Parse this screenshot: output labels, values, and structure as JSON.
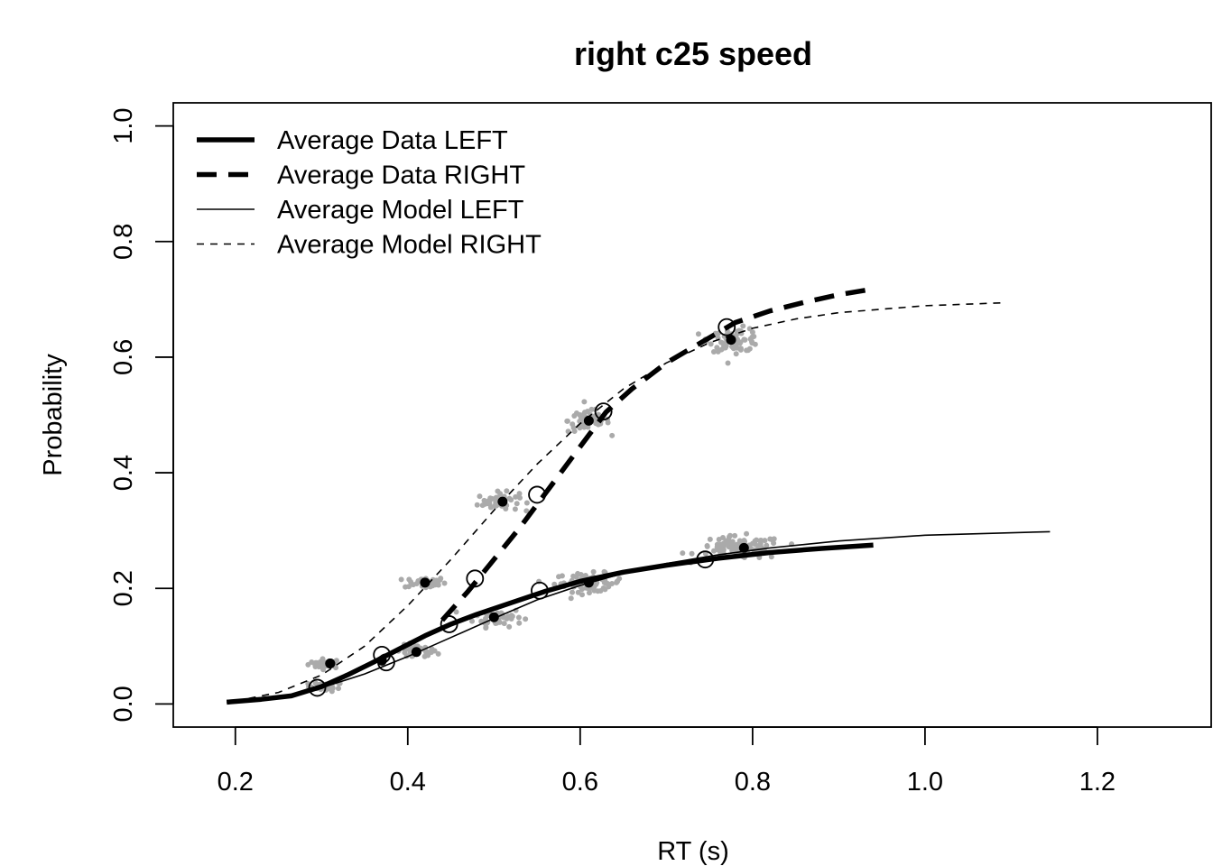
{
  "chart_data": {
    "type": "line",
    "title": "right c25 speed",
    "xlabel": "RT (s)",
    "ylabel": "Probability",
    "xlim": [
      0.128,
      1.332
    ],
    "ylim": [
      -0.04,
      1.04
    ],
    "xticks": [
      "0.2",
      "0.4",
      "0.6",
      "0.8",
      "1.0",
      "1.2"
    ],
    "xtick_values": [
      0.2,
      0.4,
      0.6,
      0.8,
      1.0,
      1.2
    ],
    "yticks": [
      "0.0",
      "0.2",
      "0.4",
      "0.6",
      "0.8",
      "1.0"
    ],
    "ytick_values": [
      0.0,
      0.2,
      0.4,
      0.6,
      0.8,
      1.0
    ],
    "grid": false,
    "legend_position": "top-left",
    "legend": [
      {
        "label": "Average Data LEFT",
        "style": "solid-thick"
      },
      {
        "label": "Average Data RIGHT",
        "style": "dashed-thick"
      },
      {
        "label": "Average Model LEFT",
        "style": "solid-thin"
      },
      {
        "label": "Average Model RIGHT",
        "style": "dashed-thin"
      }
    ],
    "series": [
      {
        "name": "Average Data LEFT",
        "style": "solid-thick",
        "x": [
          0.19,
          0.23,
          0.265,
          0.3,
          0.33,
          0.36,
          0.39,
          0.42,
          0.45,
          0.48,
          0.52,
          0.56,
          0.6,
          0.65,
          0.7,
          0.76,
          0.82,
          0.88,
          0.94
        ],
        "y": [
          0.003,
          0.008,
          0.014,
          0.03,
          0.05,
          0.072,
          0.095,
          0.118,
          0.138,
          0.155,
          0.175,
          0.195,
          0.212,
          0.228,
          0.24,
          0.252,
          0.262,
          0.269,
          0.275
        ]
      },
      {
        "name": "Average Data RIGHT",
        "style": "dashed-thick",
        "x": [
          0.44,
          0.47,
          0.5,
          0.53,
          0.56,
          0.6,
          0.63,
          0.66,
          0.7,
          0.74,
          0.78,
          0.82,
          0.86,
          0.9,
          0.94
        ],
        "y": [
          0.145,
          0.195,
          0.25,
          0.305,
          0.365,
          0.445,
          0.505,
          0.545,
          0.59,
          0.625,
          0.66,
          0.68,
          0.695,
          0.708,
          0.718
        ]
      },
      {
        "name": "Average Model LEFT",
        "style": "solid-thin",
        "x": [
          0.19,
          0.25,
          0.3,
          0.35,
          0.4,
          0.45,
          0.5,
          0.55,
          0.6,
          0.65,
          0.7,
          0.76,
          0.82,
          0.9,
          1.0,
          1.145
        ],
        "y": [
          0.003,
          0.012,
          0.028,
          0.052,
          0.082,
          0.115,
          0.148,
          0.18,
          0.205,
          0.226,
          0.243,
          0.258,
          0.27,
          0.282,
          0.292,
          0.298
        ]
      },
      {
        "name": "Average Model RIGHT",
        "style": "dashed-thin",
        "x": [
          0.2,
          0.25,
          0.3,
          0.35,
          0.4,
          0.45,
          0.5,
          0.55,
          0.6,
          0.65,
          0.7,
          0.75,
          0.8,
          0.85,
          0.9,
          1.0,
          1.09
        ],
        "y": [
          0.005,
          0.02,
          0.05,
          0.1,
          0.17,
          0.25,
          0.335,
          0.415,
          0.485,
          0.545,
          0.59,
          0.625,
          0.65,
          0.666,
          0.677,
          0.689,
          0.694
        ]
      }
    ],
    "data_points": {
      "LEFT": {
        "x": [
          0.31,
          0.37,
          0.41,
          0.5,
          0.61,
          0.79
        ],
        "y": [
          0.07,
          0.075,
          0.09,
          0.15,
          0.21,
          0.27
        ]
      },
      "RIGHT": {
        "x": [
          0.31,
          0.42,
          0.51,
          0.61,
          0.775
        ],
        "y": [
          0.07,
          0.21,
          0.35,
          0.49,
          0.63
        ]
      }
    },
    "model_points": {
      "LEFT": {
        "x": [
          0.295,
          0.37,
          0.375,
          0.448,
          0.553,
          0.745
        ],
        "y": [
          0.028,
          0.085,
          0.072,
          0.138,
          0.196,
          0.25
        ]
      },
      "RIGHT": {
        "x": [
          0.478,
          0.55,
          0.627,
          0.77
        ],
        "y": [
          0.217,
          0.362,
          0.506,
          0.652
        ]
      }
    },
    "scatter_clouds": [
      {
        "x": 0.305,
        "y": 0.07,
        "sx": 0.01,
        "sy": 0.004,
        "n": 30
      },
      {
        "x": 0.305,
        "y": 0.03,
        "sx": 0.01,
        "sy": 0.004,
        "n": 30
      },
      {
        "x": 0.41,
        "y": 0.09,
        "sx": 0.012,
        "sy": 0.006,
        "n": 40
      },
      {
        "x": 0.42,
        "y": 0.21,
        "sx": 0.012,
        "sy": 0.005,
        "n": 40
      },
      {
        "x": 0.505,
        "y": 0.15,
        "sx": 0.014,
        "sy": 0.008,
        "n": 50
      },
      {
        "x": 0.505,
        "y": 0.35,
        "sx": 0.012,
        "sy": 0.008,
        "n": 50
      },
      {
        "x": 0.61,
        "y": 0.21,
        "sx": 0.02,
        "sy": 0.008,
        "n": 70
      },
      {
        "x": 0.61,
        "y": 0.49,
        "sx": 0.012,
        "sy": 0.01,
        "n": 60
      },
      {
        "x": 0.785,
        "y": 0.27,
        "sx": 0.025,
        "sy": 0.01,
        "n": 90
      },
      {
        "x": 0.78,
        "y": 0.63,
        "sx": 0.015,
        "sy": 0.01,
        "n": 70
      }
    ],
    "colors": {
      "line": "#000000",
      "cloud": "#aaaaaa",
      "background": "#ffffff"
    }
  }
}
